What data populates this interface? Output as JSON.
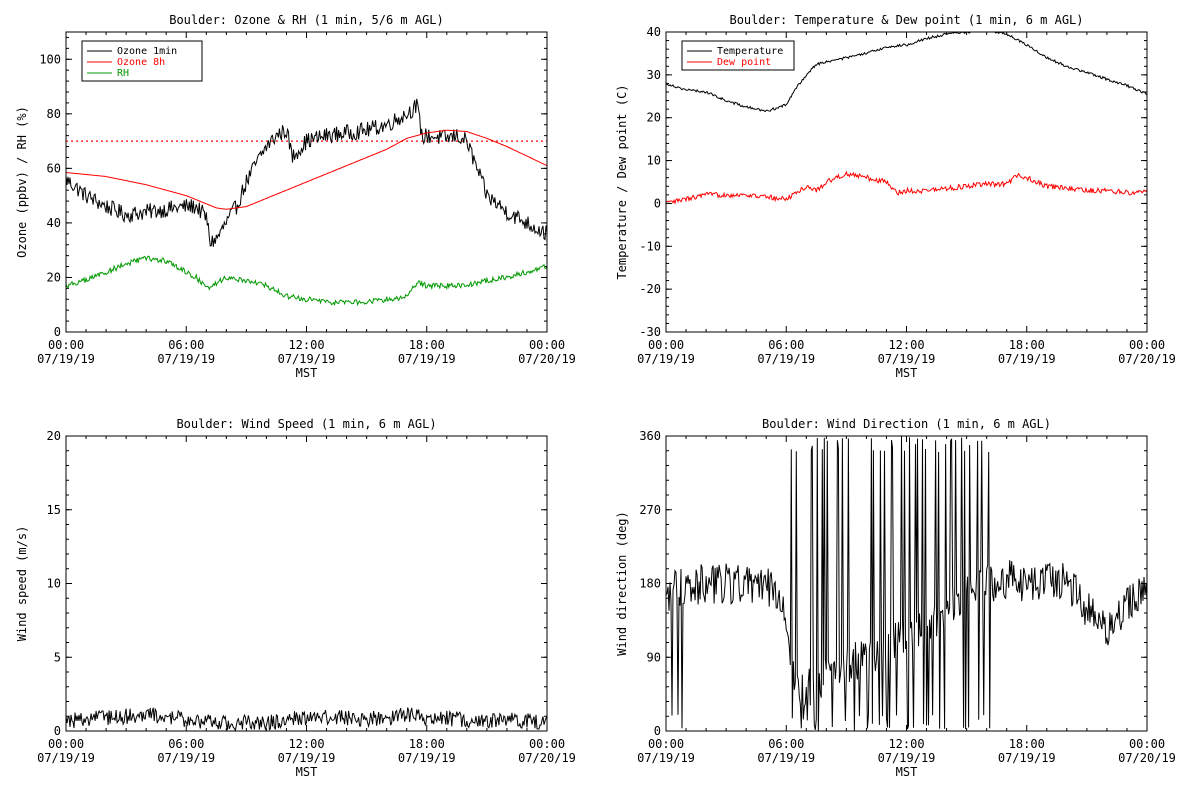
{
  "chart_data": [
    {
      "type": "line",
      "title": "Boulder: Ozone & RH (1 min, 5/6 m AGL)",
      "xlabel": "MST",
      "ylabel": "Ozone (ppbv) / RH (%)",
      "ylim": [
        0,
        110
      ],
      "yticks": [
        "0",
        "20",
        "40",
        "60",
        "80",
        "100"
      ],
      "xticks": [
        {
          "time": "00:00",
          "date": "07/19/19"
        },
        {
          "time": "06:00",
          "date": "07/19/19"
        },
        {
          "time": "12:00",
          "date": "07/19/19"
        },
        {
          "time": "18:00",
          "date": "07/19/19"
        },
        {
          "time": "00:00",
          "date": "07/20/19"
        }
      ],
      "legend": "top-left",
      "reference_line": {
        "y": 70,
        "color": "#ff0000",
        "style": "dotted"
      },
      "series": [
        {
          "name": "Ozone 1min",
          "color": "#000000",
          "noise": 3,
          "x": [
            0,
            0.5,
            1,
            2,
            3,
            4,
            5,
            6,
            6.5,
            7,
            7.2,
            7.5,
            8,
            8.5,
            9,
            9.5,
            10,
            10.5,
            11,
            11.3,
            11.5,
            12,
            13,
            14,
            15,
            16,
            17,
            17.5,
            17.8,
            18,
            19,
            19.5,
            20,
            20.5,
            21,
            21.5,
            22,
            22.5,
            23,
            23.5,
            24
          ],
          "y": [
            56,
            53,
            50,
            46,
            43,
            44,
            45,
            46,
            46,
            42,
            33,
            34,
            40,
            46,
            55,
            62,
            68,
            72,
            74,
            64,
            66,
            70,
            72,
            73,
            74,
            76,
            80,
            83,
            71,
            72,
            71,
            72,
            70,
            60,
            50,
            47,
            44,
            42,
            40,
            38,
            36
          ]
        },
        {
          "name": "Ozone 8h",
          "color": "#ff0000",
          "noise": 0,
          "x": [
            0,
            2,
            4,
            6,
            7,
            7.5,
            8,
            9,
            10,
            12,
            14,
            16,
            17,
            18,
            19,
            20,
            21,
            22,
            23,
            24
          ],
          "y": [
            58.5,
            57,
            54,
            50,
            47,
            45.5,
            45,
            46,
            49,
            55,
            61,
            67,
            71,
            73,
            74,
            73.5,
            71,
            68,
            64.5,
            61
          ]
        },
        {
          "name": "RH",
          "color": "#009900",
          "noise": 1,
          "x": [
            0,
            1,
            2,
            3,
            4,
            5,
            6,
            6.5,
            7,
            8,
            9,
            10,
            11,
            12,
            13,
            14,
            15,
            16,
            17,
            17.5,
            18,
            19,
            20,
            21,
            22,
            23,
            24
          ],
          "y": [
            17,
            19,
            22,
            25,
            27,
            26,
            22,
            20,
            16,
            20,
            19,
            17,
            13,
            12,
            11,
            11,
            11,
            12,
            13,
            18,
            17,
            17,
            17,
            19,
            20,
            22,
            24
          ]
        }
      ]
    },
    {
      "type": "line",
      "title": "Boulder: Temperature & Dew point (1 min, 6 m AGL)",
      "xlabel": "MST",
      "ylabel": "Temperature / Dew point (C)",
      "ylim": [
        -30,
        40
      ],
      "yticks": [
        "-30",
        "-20",
        "-10",
        "0",
        "10",
        "20",
        "30",
        "40"
      ],
      "xticks": [
        {
          "time": "00:00",
          "date": "07/19/19"
        },
        {
          "time": "06:00",
          "date": "07/19/19"
        },
        {
          "time": "12:00",
          "date": "07/19/19"
        },
        {
          "time": "18:00",
          "date": "07/19/19"
        },
        {
          "time": "00:00",
          "date": "07/20/19"
        }
      ],
      "legend": "top-left",
      "series": [
        {
          "name": "Temperature",
          "color": "#000000",
          "noise": 0.3,
          "x": [
            0,
            1,
            2,
            3,
            4,
            5,
            6,
            6.5,
            7,
            7.5,
            8,
            9,
            10,
            11,
            12,
            13,
            14,
            15,
            16,
            17,
            18,
            19,
            20,
            21,
            22,
            23,
            24
          ],
          "y": [
            28,
            26.5,
            26,
            24,
            22.5,
            21.5,
            23,
            27,
            30,
            32.5,
            33,
            34,
            35,
            36.5,
            37,
            38.5,
            39.5,
            40,
            40.5,
            39.5,
            37,
            34,
            32,
            30.5,
            29,
            27.5,
            25.5
          ]
        },
        {
          "name": "Dew point",
          "color": "#ff0000",
          "noise": 0.6,
          "x": [
            0,
            1,
            2,
            3,
            4,
            5,
            6,
            6.5,
            7,
            7.5,
            8,
            9,
            10,
            11,
            11.5,
            12,
            13,
            14,
            15,
            16,
            17,
            17.5,
            18,
            19,
            20,
            21,
            22,
            23,
            24
          ],
          "y": [
            0,
            1,
            2,
            2,
            2,
            1.5,
            1,
            2.5,
            4,
            3,
            5,
            7,
            6,
            5,
            2.5,
            3,
            3,
            3.5,
            4,
            4.5,
            4.5,
            6.5,
            6,
            4,
            3.5,
            3,
            3,
            2.5,
            3
          ]
        }
      ]
    },
    {
      "type": "line",
      "title": "Boulder: Wind Speed (1 min, 6 m AGL)",
      "xlabel": "MST",
      "ylabel": "Wind speed (m/s)",
      "ylim": [
        0,
        20
      ],
      "yticks": [
        "0",
        "5",
        "10",
        "15",
        "20"
      ],
      "xticks": [
        {
          "time": "00:00",
          "date": "07/19/19"
        },
        {
          "time": "06:00",
          "date": "07/19/19"
        },
        {
          "time": "12:00",
          "date": "07/19/19"
        },
        {
          "time": "18:00",
          "date": "07/19/19"
        },
        {
          "time": "00:00",
          "date": "07/20/19"
        }
      ],
      "legend": "none",
      "series": [
        {
          "name": "",
          "color": "#000000",
          "noise": 0.55,
          "clip_min": 0,
          "x": [
            0,
            2,
            4,
            6,
            8,
            10,
            12,
            14,
            16,
            17,
            18,
            19,
            20,
            22,
            24
          ],
          "y": [
            0.7,
            0.9,
            1.1,
            0.8,
            0.5,
            0.6,
            0.9,
            0.9,
            0.8,
            1.2,
            0.8,
            0.9,
            0.7,
            0.7,
            0.6
          ]
        }
      ]
    },
    {
      "type": "line",
      "title": "Boulder: Wind Direction (1 min, 6 m AGL)",
      "xlabel": "MST",
      "ylabel": "Wind direction (deg)",
      "ylim": [
        0,
        360
      ],
      "yticks": [
        "0",
        "90",
        "180",
        "270",
        "360"
      ],
      "xticks": [
        {
          "time": "00:00",
          "date": "07/19/19"
        },
        {
          "time": "06:00",
          "date": "07/19/19"
        },
        {
          "time": "12:00",
          "date": "07/19/19"
        },
        {
          "time": "18:00",
          "date": "07/19/19"
        },
        {
          "time": "00:00",
          "date": "07/20/19"
        }
      ],
      "legend": "none",
      "series": [
        {
          "name": "",
          "color": "#000000",
          "noise": 25,
          "clip_min": 0,
          "clip_max": 360,
          "x": [
            0,
            1,
            2,
            3,
            4,
            5,
            5.5,
            6,
            6.5,
            7,
            8,
            9,
            10,
            11,
            12,
            13,
            14,
            15,
            16,
            17,
            18,
            19,
            20,
            21,
            22,
            23,
            24
          ],
          "y": [
            170,
            175,
            180,
            180,
            178,
            175,
            170,
            130,
            60,
            50,
            70,
            80,
            90,
            100,
            120,
            130,
            150,
            170,
            180,
            185,
            180,
            185,
            180,
            150,
            120,
            160,
            170
          ]
        }
      ]
    }
  ]
}
